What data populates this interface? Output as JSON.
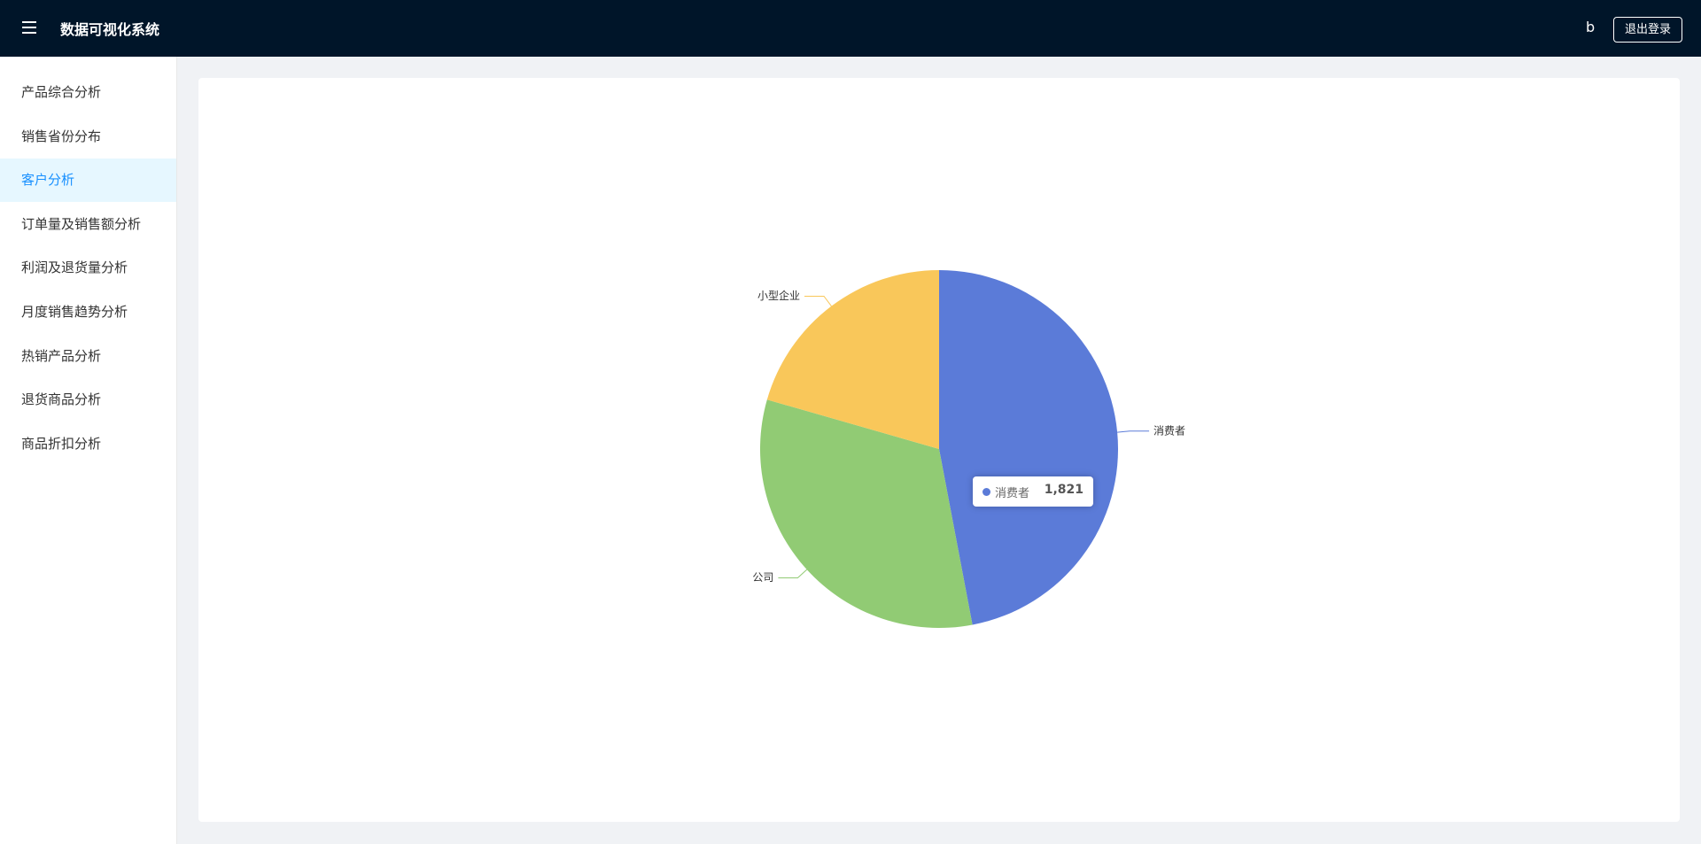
{
  "header": {
    "title": "数据可视化系统",
    "user": "b",
    "logout": "退出登录"
  },
  "menu": [
    "产品综合分析",
    "销售省份分布",
    "客户分析",
    "订单量及销售额分析",
    "利润及退货量分析",
    "月度销售趋势分析",
    "热销产品分析",
    "退货商品分析",
    "商品折扣分析"
  ],
  "chart_data": {
    "type": "pie",
    "categories": [
      "消费者",
      "公司",
      "小型企业"
    ],
    "values": [
      1821,
      1256,
      796
    ],
    "value_labels": [
      "1,821",
      null,
      null
    ],
    "colors": [
      "#5b7bd8",
      "#91cb74",
      "#f9c75a"
    ]
  }
}
